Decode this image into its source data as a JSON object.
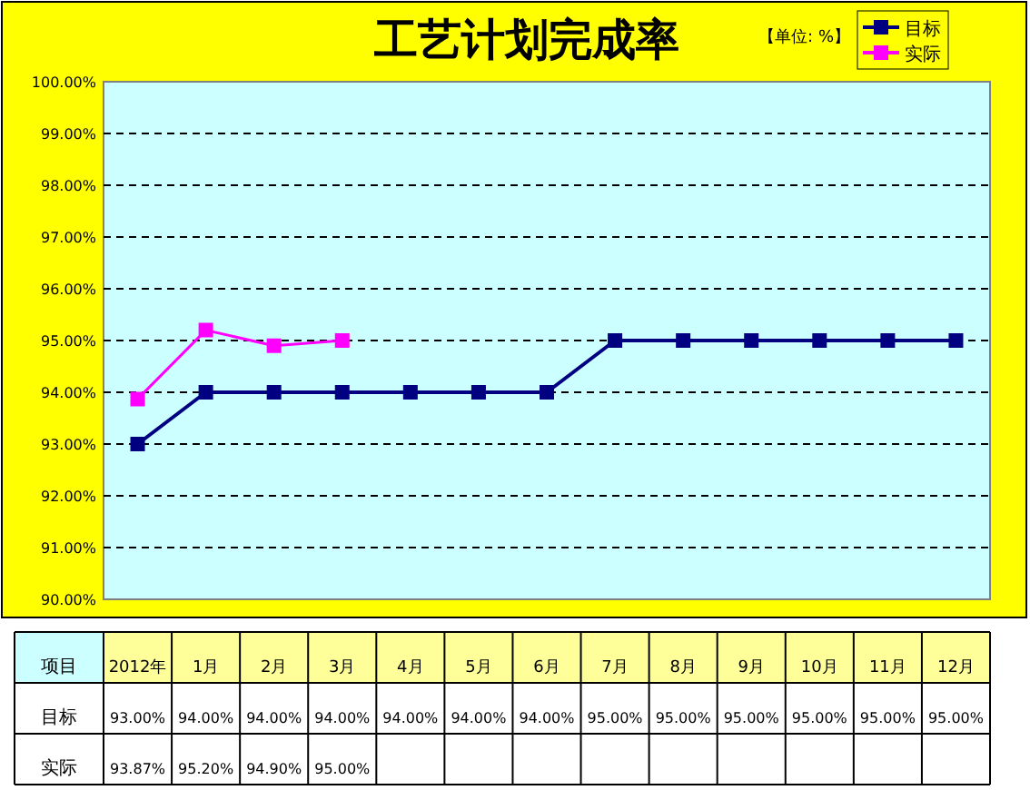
{
  "chart_data": {
    "type": "line",
    "title": "工艺计划完成率",
    "annotations": [
      "【单位: %】",
      "项目"
    ],
    "categories": [
      "2012年",
      "1月",
      "2月",
      "3月",
      "4月",
      "5月",
      "6月",
      "7月",
      "8月",
      "9月",
      "10月",
      "11月",
      "12月"
    ],
    "series": [
      {
        "name": "目标",
        "color": "#000080",
        "values": [
          93,
          94,
          94,
          94,
          94,
          94,
          94,
          95,
          95,
          95,
          95,
          95,
          95
        ],
        "value_labels": [
          "93.00%",
          "94.00%",
          "94.00%",
          "94.00%",
          "94.00%",
          "94.00%",
          "94.00%",
          "95.00%",
          "95.00%",
          "95.00%",
          "95.00%",
          "95.00%",
          "95.00%"
        ]
      },
      {
        "name": "实际",
        "color": "#ff00ff",
        "values": [
          93.87,
          95.2,
          94.9,
          95,
          null,
          null,
          null,
          null,
          null,
          null,
          null,
          null,
          null
        ],
        "value_labels": [
          "93.87%",
          "95.20%",
          "94.90%",
          "95.00%",
          null,
          null,
          null,
          null,
          null,
          null,
          null,
          null,
          null
        ]
      }
    ],
    "ylim": [
      90,
      100
    ],
    "yticks": [
      {
        "value": 90,
        "label": "90.00%"
      },
      {
        "value": 91,
        "label": "91.00%"
      },
      {
        "value": 92,
        "label": "92.00%"
      },
      {
        "value": 93,
        "label": "93.00%"
      },
      {
        "value": 94,
        "label": "94.00%"
      },
      {
        "value": 95,
        "label": "95.00%"
      },
      {
        "value": 96,
        "label": "96.00%"
      },
      {
        "value": 97,
        "label": "97.00%"
      },
      {
        "value": 98,
        "label": "98.00%"
      },
      {
        "value": 99,
        "label": "99.00%"
      },
      {
        "value": 100,
        "label": "100.00%"
      }
    ],
    "grid": "y",
    "legend": "top right",
    "marker": "square",
    "line_style": "solid"
  }
}
